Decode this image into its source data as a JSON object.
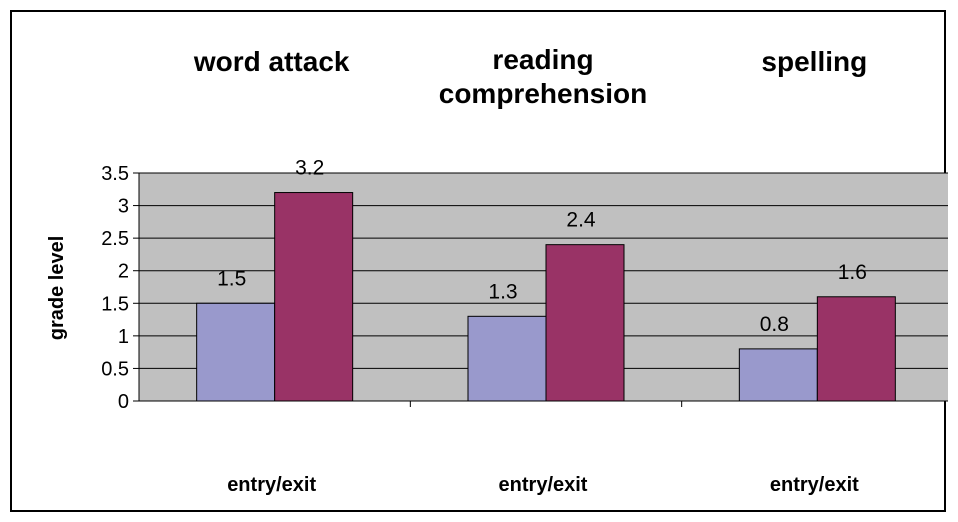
{
  "chart_data": {
    "type": "bar",
    "ylabel": "grade level",
    "ylim": [
      0,
      3.5
    ],
    "y_ticks": [
      "0",
      "0.5",
      "1",
      "1.5",
      "2",
      "2.5",
      "3",
      "3.5"
    ],
    "groups": [
      {
        "title": "word attack",
        "category": "entry/exit",
        "values": [
          1.5,
          3.2
        ],
        "labels": [
          "1.5",
          "3.2"
        ]
      },
      {
        "title": "reading comprehension",
        "title_lines": [
          "reading",
          "comprehension"
        ],
        "category": "entry/exit",
        "values": [
          1.3,
          2.4
        ],
        "labels": [
          "1.3",
          "2.4"
        ]
      },
      {
        "title": "spelling",
        "category": "entry/exit",
        "values": [
          0.8,
          1.6
        ],
        "labels": [
          "0.8",
          "1.6"
        ]
      }
    ],
    "grid": true,
    "legend": "none",
    "colors": {
      "entry": "#9999cc",
      "exit": "#993366",
      "plot_bg": "#c0c0c0",
      "border": "#000000"
    }
  }
}
